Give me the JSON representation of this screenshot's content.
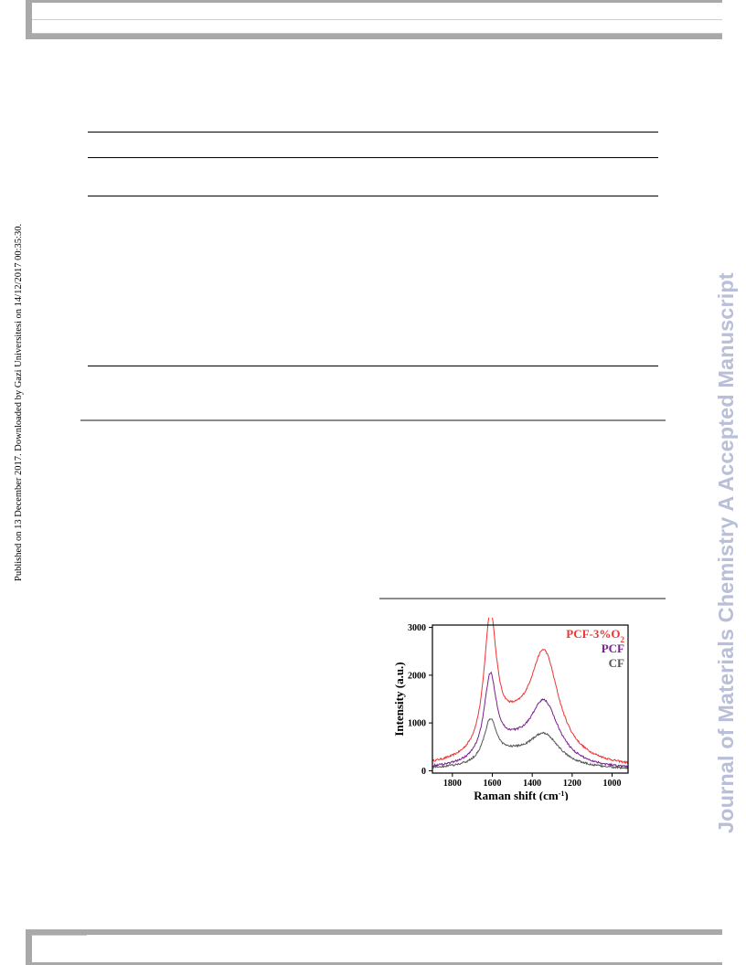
{
  "side_note": "Published on 13 December 2017. Downloaded by Gazi Universitesi on 14/12/2017 00:35:30.",
  "watermark": "Journal of Materials Chemistry A Accepted Manuscript",
  "chart_data": {
    "type": "line",
    "xlabel": "Raman shift (cm",
    "xlabel_sup": "-1",
    "xlabel_suffix": ")",
    "ylabel": "Intensity (a.u.)",
    "xlim": [
      1900,
      920
    ],
    "ylim": [
      -50,
      3050
    ],
    "x_ticks": [
      1800,
      1600,
      1400,
      1200,
      1000
    ],
    "y_ticks": [
      0,
      1000,
      2000,
      3000
    ],
    "x_reversed": true,
    "legend_position": "top-right",
    "legend": [
      {
        "label": "PCF-3%O",
        "sub": "2",
        "color": "#ee3333"
      },
      {
        "label": "PCF",
        "sub": "",
        "color": "#7a1e8e"
      },
      {
        "label": "CF",
        "sub": "",
        "color": "#555555"
      }
    ],
    "series": [
      {
        "name": "PCF-3%O2",
        "color": "#ee3333",
        "peaks": [
          {
            "center": 1610,
            "height": 2780,
            "width": 38
          },
          {
            "center": 1340,
            "height": 2230,
            "width": 90
          },
          {
            "center": 1500,
            "height": 560,
            "width": 120
          }
        ],
        "baseline_start": 60,
        "baseline_end": 40
      },
      {
        "name": "PCF",
        "color": "#7a1e8e",
        "peaks": [
          {
            "center": 1610,
            "height": 1710,
            "width": 38
          },
          {
            "center": 1340,
            "height": 1310,
            "width": 90
          },
          {
            "center": 1500,
            "height": 350,
            "width": 120
          }
        ],
        "baseline_start": 20,
        "baseline_end": 10
      },
      {
        "name": "CF",
        "color": "#555555",
        "peaks": [
          {
            "center": 1610,
            "height": 880,
            "width": 40
          },
          {
            "center": 1340,
            "height": 680,
            "width": 95
          },
          {
            "center": 1500,
            "height": 220,
            "width": 120
          }
        ],
        "baseline_start": 20,
        "baseline_end": 10
      }
    ]
  }
}
